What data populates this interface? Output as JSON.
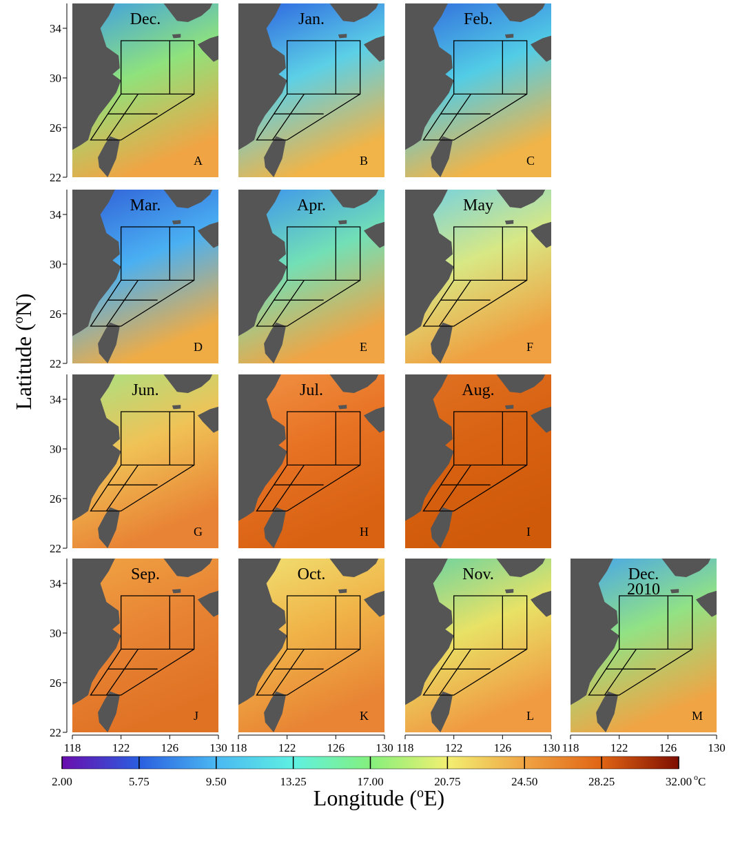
{
  "panels": [
    {
      "month": [
        "Dec."
      ],
      "letter": "A",
      "colors": [
        "#3a9ce8",
        "#8fe27c",
        "#f0a444"
      ]
    },
    {
      "month": [
        "Jan."
      ],
      "letter": "B",
      "colors": [
        "#2a5ee0",
        "#5cd0e6",
        "#f0b448"
      ]
    },
    {
      "month": [
        "Feb."
      ],
      "letter": "C",
      "colors": [
        "#3068dc",
        "#52cde6",
        "#f0b448"
      ]
    },
    {
      "month": [
        "Mar."
      ],
      "letter": "D",
      "colors": [
        "#2f5cd6",
        "#4ab0f2",
        "#f0ac44"
      ]
    },
    {
      "month": [
        "Apr."
      ],
      "letter": "E",
      "colors": [
        "#3a90f0",
        "#72e0b6",
        "#f0a444"
      ]
    },
    {
      "month": [
        "May"
      ],
      "letter": "F",
      "colors": [
        "#6ed0e6",
        "#d8e884",
        "#f0a040"
      ]
    },
    {
      "month": [
        "Jun."
      ],
      "letter": "G",
      "colors": [
        "#a6e284",
        "#f0c256",
        "#e88234"
      ]
    },
    {
      "month": [
        "Jul."
      ],
      "letter": "H",
      "colors": [
        "#f09244",
        "#e87224",
        "#d86212"
      ]
    },
    {
      "month": [
        "Aug."
      ],
      "letter": "I",
      "colors": [
        "#e07224",
        "#d86212",
        "#cf5a0a"
      ]
    },
    {
      "month": [
        "Sep."
      ],
      "letter": "J",
      "colors": [
        "#f0a444",
        "#e88434",
        "#e07224"
      ]
    },
    {
      "month": [
        "Oct."
      ],
      "letter": "K",
      "colors": [
        "#f0e274",
        "#f0b448",
        "#e88434"
      ]
    },
    {
      "month": [
        "Nov."
      ],
      "letter": "L",
      "colors": [
        "#62d2a4",
        "#e8e266",
        "#f09a42"
      ]
    },
    {
      "month": [
        "Dec.",
        "2010"
      ],
      "letter": "M",
      "colors": [
        "#42a2f0",
        "#92e284",
        "#f0a444"
      ]
    }
  ],
  "lat_lim": [
    22,
    36
  ],
  "lat_ticks": [
    34,
    30,
    26,
    22
  ],
  "lon_lim": [
    118,
    130
  ],
  "lon_ticks": [
    118,
    122,
    126,
    130
  ],
  "y_label": [
    "Latitude (",
    "o",
    "N)"
  ],
  "x_label": [
    "Longitude (",
    "o",
    "E)"
  ],
  "colorbar": {
    "lim": [
      2,
      32
    ],
    "ticks": [
      {
        "value": 2,
        "label": "2.00"
      },
      {
        "value": 5.75,
        "label": "5.75"
      },
      {
        "value": 9.5,
        "label": "9.50"
      },
      {
        "value": 13.25,
        "label": "13.25"
      },
      {
        "value": 17,
        "label": "17.00"
      },
      {
        "value": 20.75,
        "label": "20.75"
      },
      {
        "value": 24.5,
        "label": "24.50"
      },
      {
        "value": 28.25,
        "label": "28.25"
      },
      {
        "value": 32,
        "label": "32.00"
      }
    ],
    "unit": [
      "o",
      "C"
    ],
    "colors": [
      "#6a0dad",
      "#2a5ee0",
      "#4ab8f2",
      "#5ef0e2",
      "#84f07c",
      "#f2f072",
      "#f0a444",
      "#e06414",
      "#7e0e00"
    ]
  }
}
